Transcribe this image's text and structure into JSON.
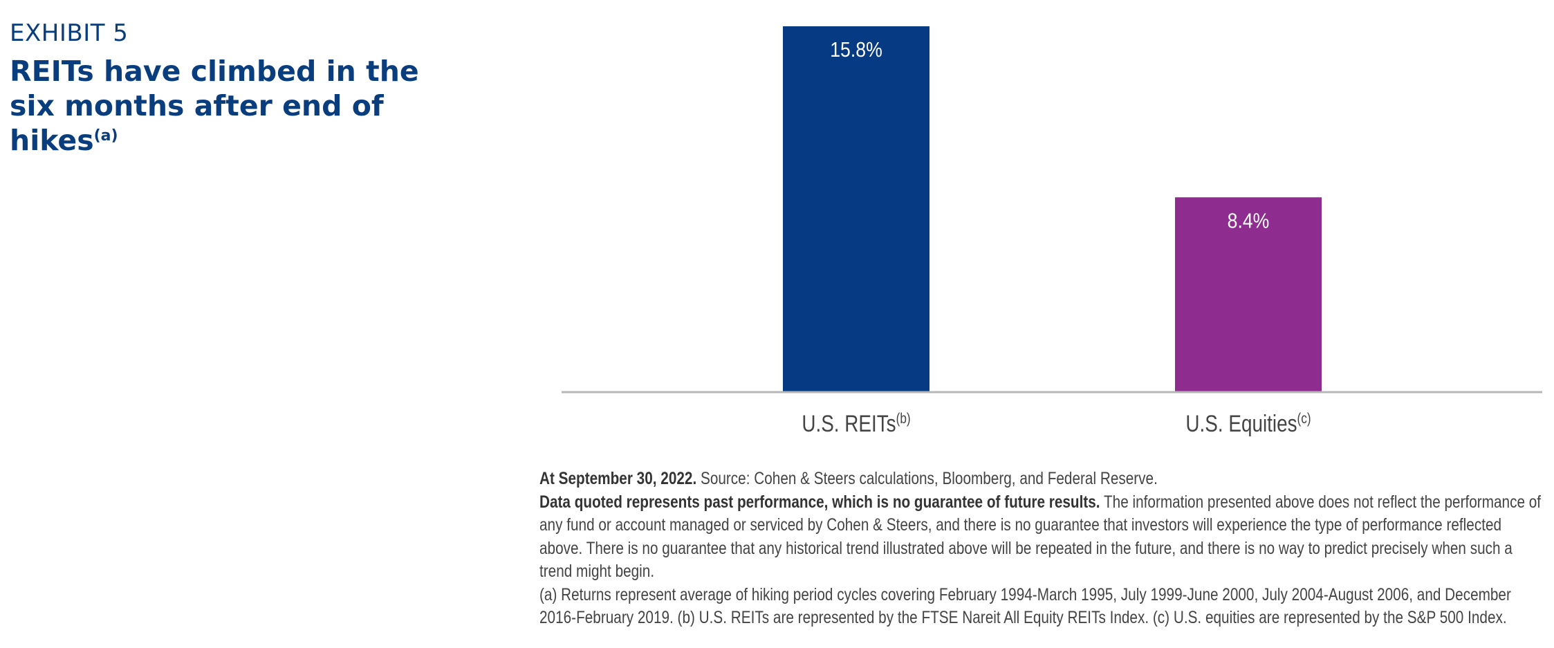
{
  "exhibit": {
    "label": "EXHIBIT 5",
    "title": "REITs have climbed in the six months after end of hikes",
    "title_note": "(a)"
  },
  "chart_data": {
    "type": "bar",
    "categories": [
      "U.S. REITs",
      "U.S. Equities"
    ],
    "category_notes": [
      "(b)",
      "(c)"
    ],
    "values": [
      15.8,
      8.4
    ],
    "value_labels": [
      "15.8%",
      "8.4%"
    ],
    "bar_colors": [
      "#063a83",
      "#8e2c90"
    ],
    "ylim": [
      0,
      15.8
    ],
    "grid": false,
    "axis_color": "#b7b7b7"
  },
  "notes": {
    "date_bold": "At September 30, 2022.",
    "source": " Source: Cohen & Steers calculations, Bloomberg, and Federal Reserve.",
    "disclaimer_bold": "Data quoted represents past performance, which is no guarantee of future results.",
    "disclaimer": " The information presented above does not reflect the performance of any fund or account managed or serviced by Cohen & Steers, and there is no guarantee that investors will experience the type of performance reflected above. There is no guarantee that any historical trend illustrated above will be repeated in the future, and there is no way to predict precisely when such a trend might begin.",
    "footnotes": "(a) Returns represent average of hiking period cycles covering February 1994-March 1995, July 1999-June 2000, July 2004-August 2006, and December 2016-February 2019. (b) U.S. REITs are represented by the FTSE Nareit All Equity REITs Index. (c) U.S. equities are represented by the S&P 500 Index."
  }
}
